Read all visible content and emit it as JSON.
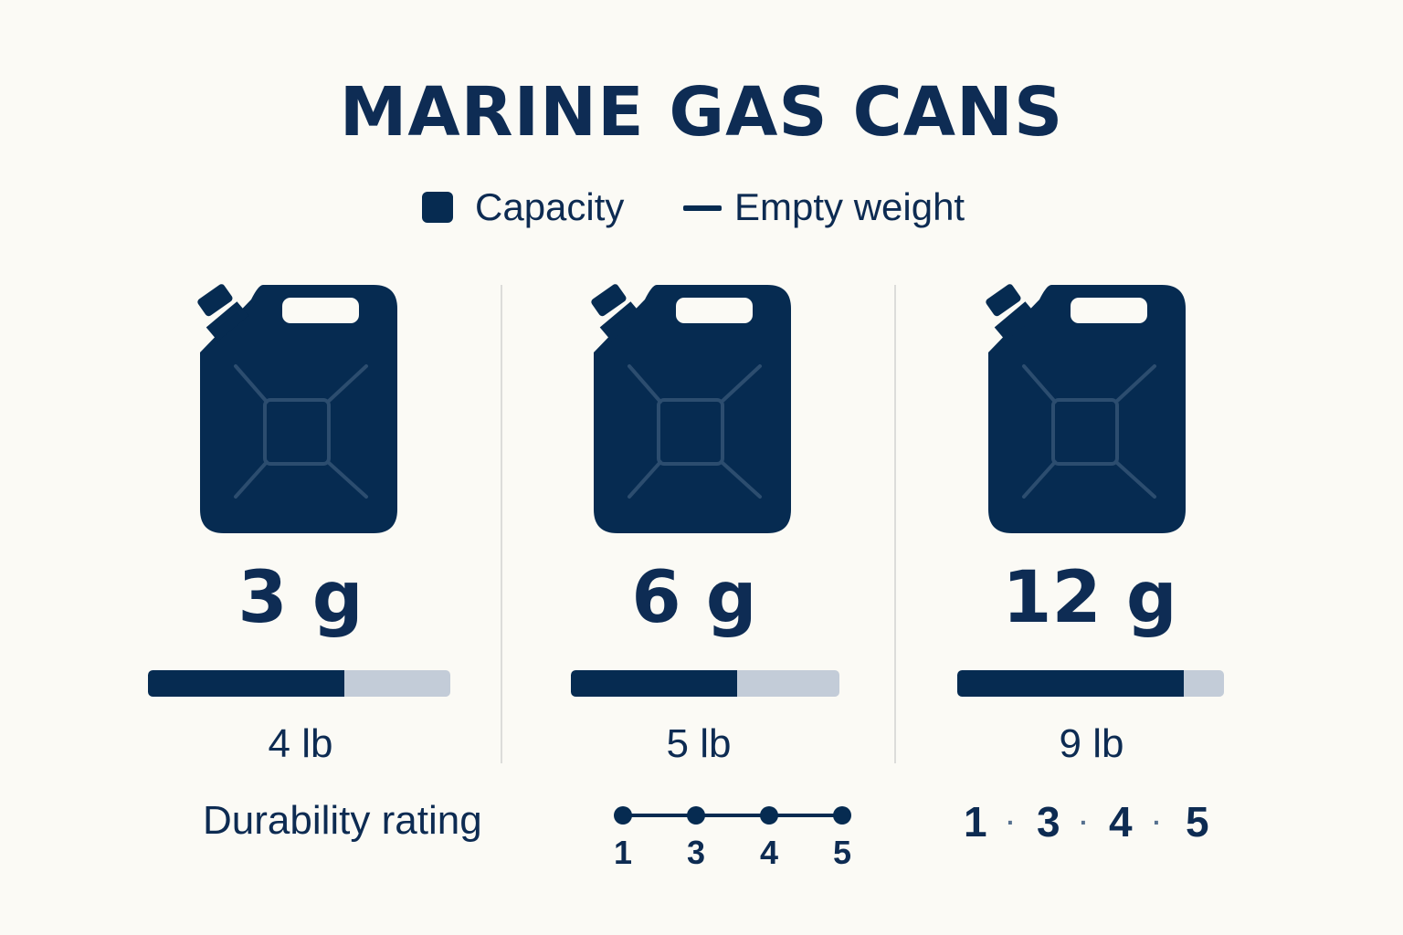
{
  "title": "MARINE GAS CANS",
  "legend": {
    "capacity": "Capacity",
    "empty_weight": "Empty weight"
  },
  "colors": {
    "primary": "#062b51",
    "bar_track": "#c3ccd8",
    "background": "#fbfaf5",
    "text": "#0d2b52"
  },
  "icons": {
    "can": "jerry-can-icon"
  },
  "cans": [
    {
      "capacity": "3 g",
      "weight": "4 lb",
      "weight_bar_fraction": 0.65
    },
    {
      "capacity": "6 g",
      "weight": "5 lb",
      "weight_bar_fraction": 0.62
    },
    {
      "capacity": "12 g",
      "weight": "9 lb",
      "weight_bar_fraction": 0.85
    }
  ],
  "durability": {
    "label": "Durability rating",
    "scale_ticks": [
      "1",
      "3",
      "4",
      "5"
    ],
    "inline_values": [
      "1",
      "3",
      "4",
      "5"
    ],
    "separator": "·"
  },
  "chart_data": {
    "type": "bar",
    "title": "MARINE GAS CANS",
    "categories": [
      "3 g",
      "6 g",
      "12 g"
    ],
    "series": [
      {
        "name": "Capacity",
        "values": [
          3,
          6,
          12
        ]
      },
      {
        "name": "Empty weight",
        "values": [
          4,
          5,
          9
        ]
      }
    ],
    "legend_position": "top",
    "grid": false
  }
}
